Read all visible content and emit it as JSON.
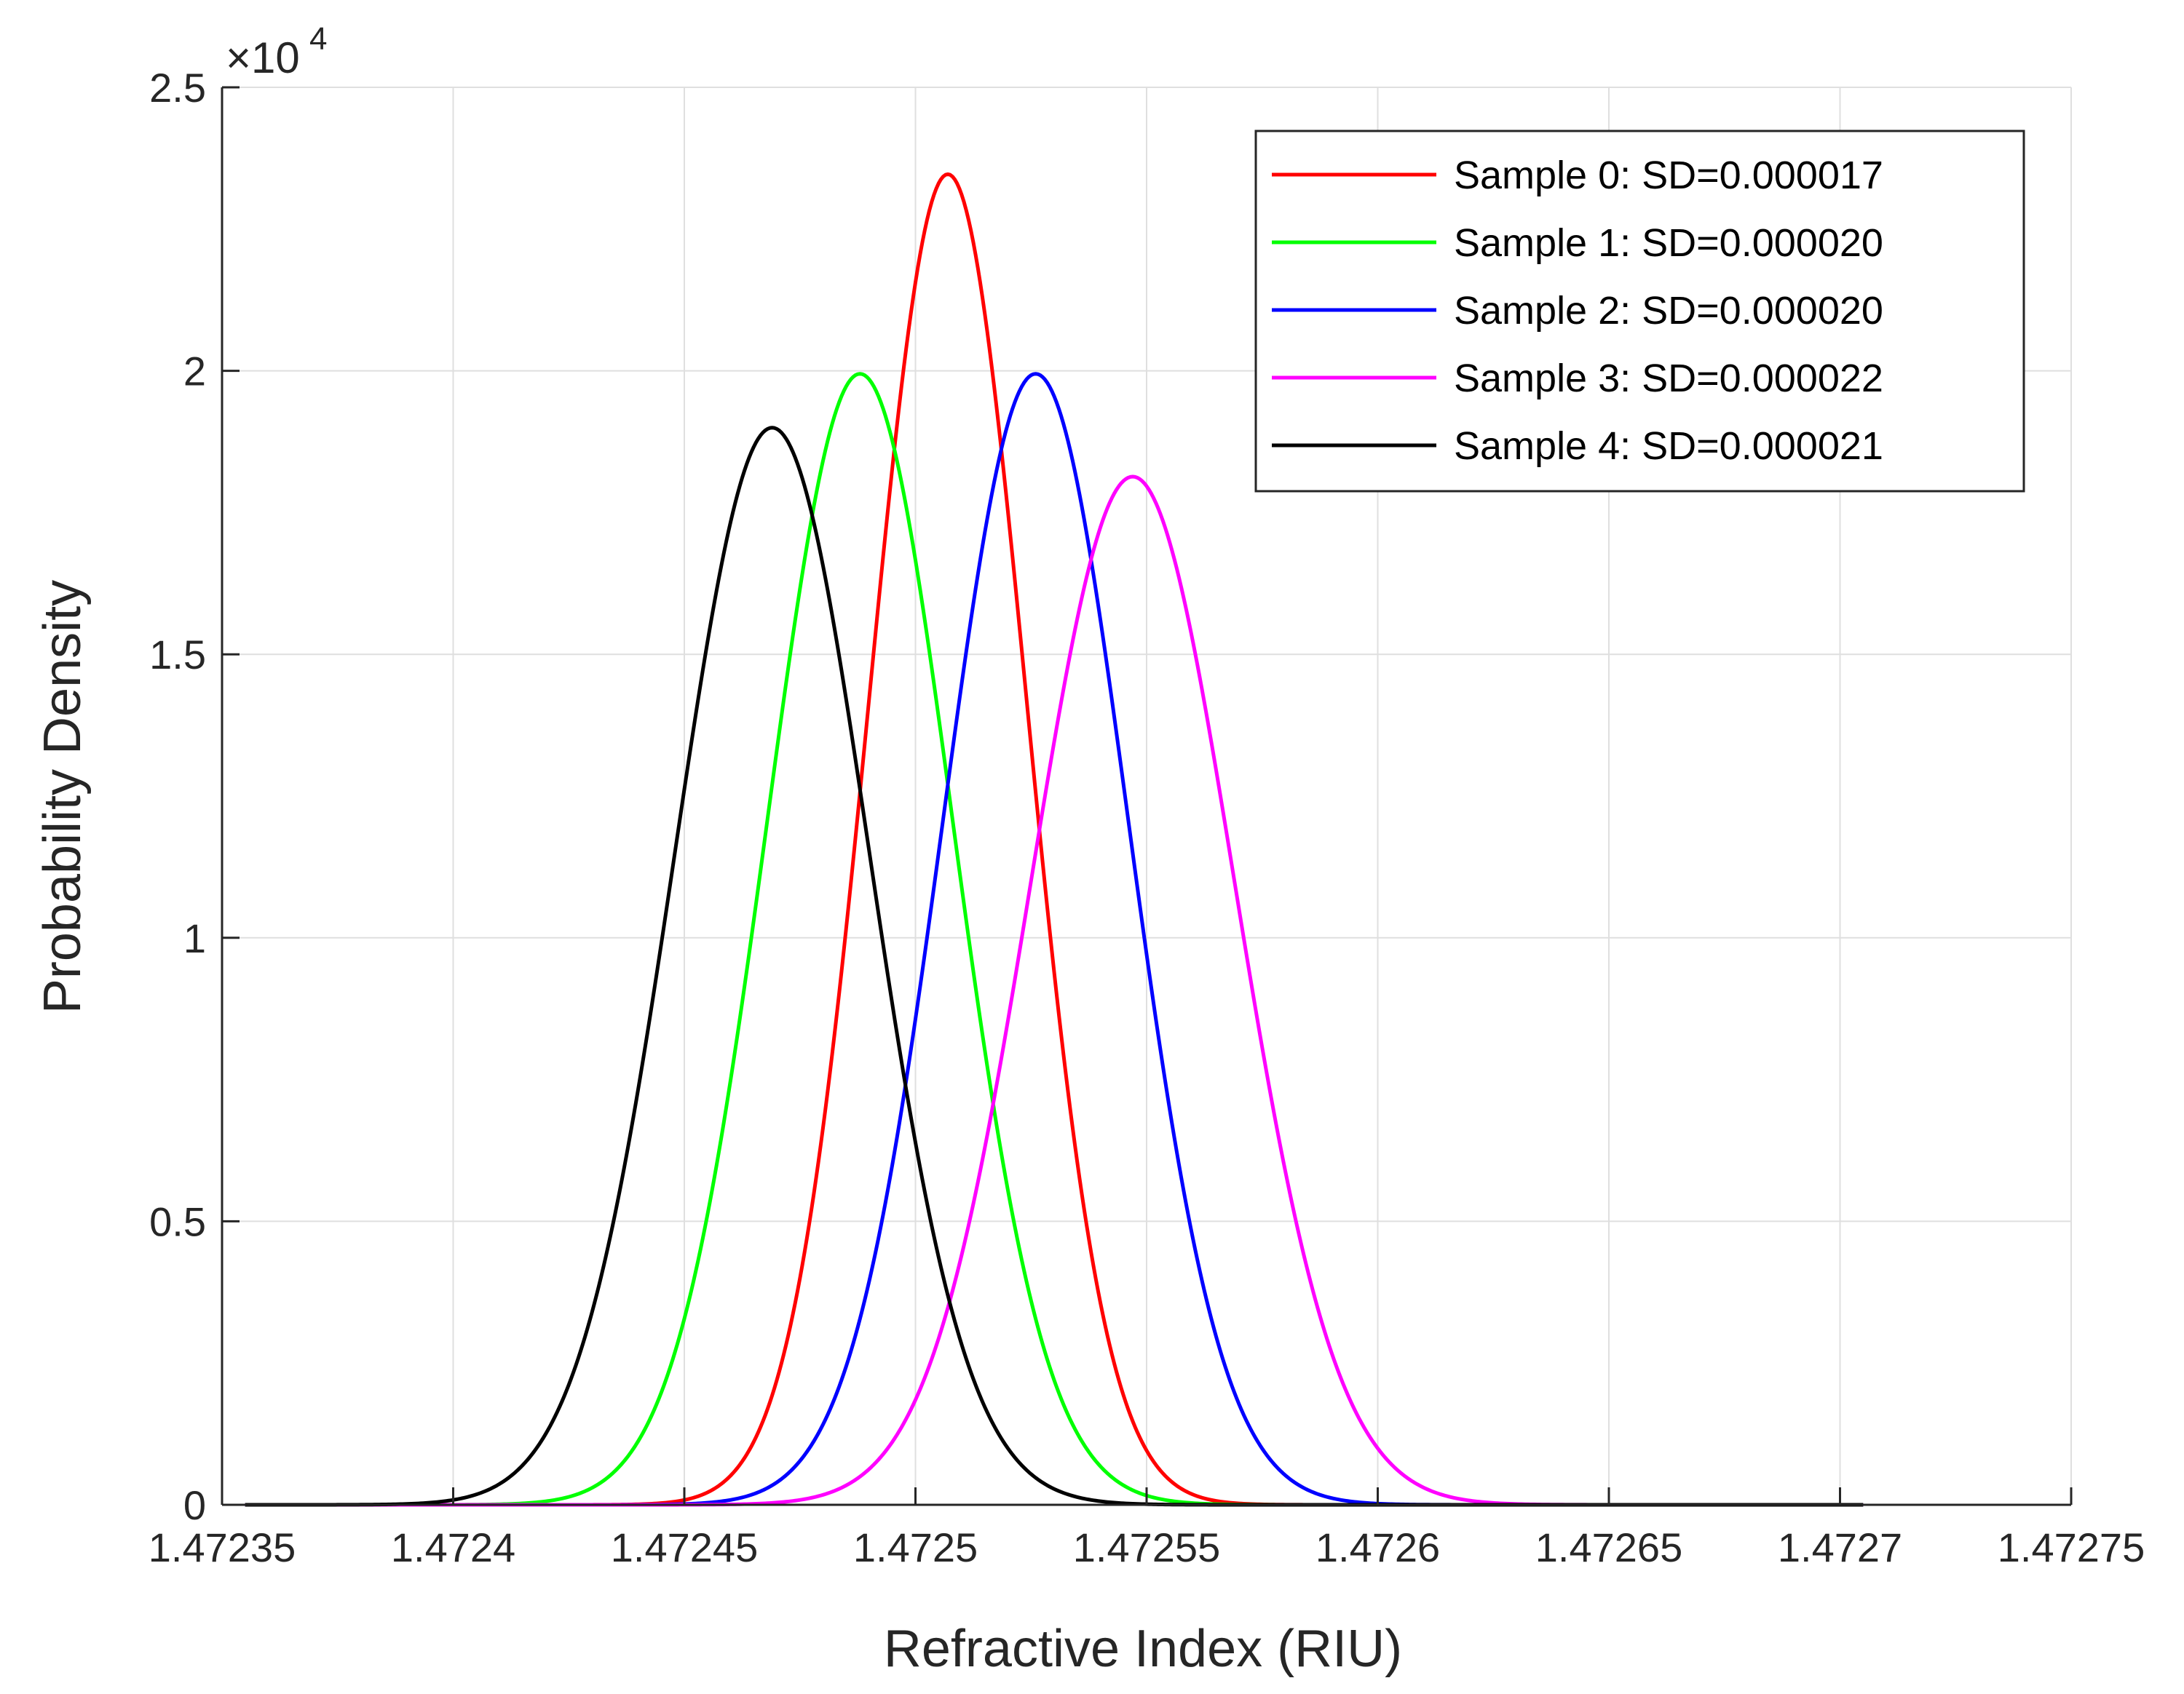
{
  "chart_data": {
    "type": "line",
    "title": "",
    "xlabel": "Refractive Index (RIU)",
    "ylabel": "Probability Density",
    "xlim": [
      1.47235,
      1.47275
    ],
    "ylim": [
      0,
      25000
    ],
    "x_range_plotted": [
      1.472355,
      1.472705
    ],
    "xticks": [
      1.47235,
      1.4724,
      1.47245,
      1.4725,
      1.47255,
      1.4726,
      1.47265,
      1.4727,
      1.47275
    ],
    "xtick_labels": [
      "1.47235",
      "1.4724",
      "1.47245",
      "1.4725",
      "1.47255",
      "1.4726",
      "1.47265",
      "1.4727",
      "1.47275"
    ],
    "yticks": [
      0,
      5000,
      10000,
      15000,
      20000,
      25000
    ],
    "ytick_labels": [
      "0",
      "0.5",
      "1",
      "1.5",
      "2",
      "2.5"
    ],
    "y_exponent": {
      "base": "×10",
      "power": "4"
    },
    "grid": true,
    "legend_position": "top-right",
    "series": [
      {
        "name": "Sample 0: SD=0.000017",
        "color": "#ff0000",
        "mean": 1.472507,
        "sd": 1.7e-05
      },
      {
        "name": "Sample 1: SD=0.000020",
        "color": "#00ff00",
        "mean": 1.472488,
        "sd": 2e-05
      },
      {
        "name": "Sample 2: SD=0.000020",
        "color": "#0000ff",
        "mean": 1.472526,
        "sd": 2e-05
      },
      {
        "name": "Sample 3: SD=0.000022",
        "color": "#ff00ff",
        "mean": 1.472547,
        "sd": 2.2e-05
      },
      {
        "name": "Sample 4: SD=0.000021",
        "color": "#000000",
        "mean": 1.472469,
        "sd": 2.1e-05
      }
    ]
  }
}
